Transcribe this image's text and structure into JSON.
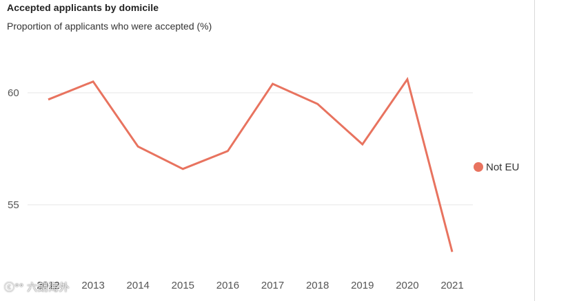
{
  "title": "Accepted applicants by domicile",
  "subtitle": "Proportion of applicants who were accepted (%)",
  "watermark": "ⓒ°° 六朗海外",
  "colors": {
    "series": "#E8735F",
    "grid": "#e6e6e6",
    "tick": "#555555"
  },
  "chart_data": {
    "type": "line",
    "title": "Accepted applicants by domicile",
    "subtitle": "Proportion of applicants who were accepted (%)",
    "x": [
      "2012",
      "2013",
      "2014",
      "2015",
      "2016",
      "2017",
      "2018",
      "2019",
      "2020",
      "2021"
    ],
    "series": [
      {
        "name": "Not EU",
        "values": [
          59.7,
          60.5,
          57.6,
          56.6,
          57.4,
          60.4,
          59.5,
          57.7,
          60.6,
          52.9
        ]
      }
    ],
    "yticks": [
      55,
      60
    ],
    "ylim": [
      52.5,
      62.5
    ],
    "grid": true,
    "legend": "right"
  }
}
